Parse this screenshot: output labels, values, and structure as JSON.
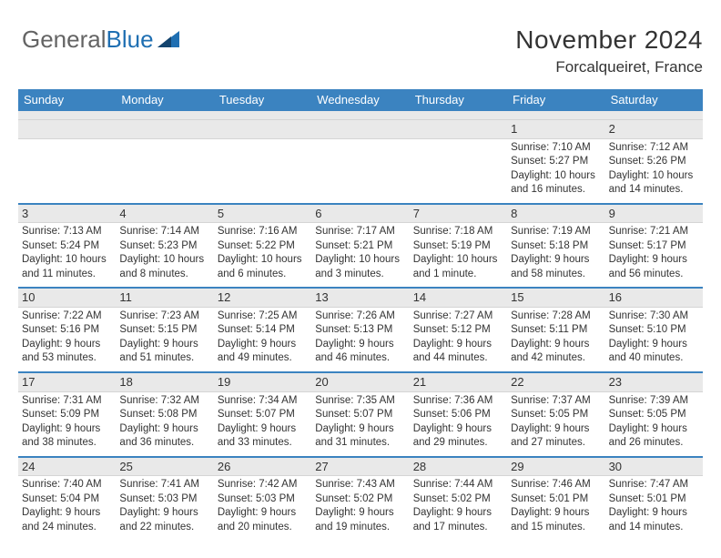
{
  "logo": {
    "word1": "General",
    "word2": "Blue"
  },
  "title": "November 2024",
  "location": "Forcalqueiret, France",
  "colors": {
    "header_bg": "#3b83c0",
    "header_text": "#ffffff",
    "band_bg": "#e9e9e9",
    "row_border": "#3b83c0",
    "logo_gray": "#646464",
    "logo_blue": "#1f6fb2"
  },
  "day_names": [
    "Sunday",
    "Monday",
    "Tuesday",
    "Wednesday",
    "Thursday",
    "Friday",
    "Saturday"
  ],
  "weeks": [
    [
      {
        "num": "",
        "lines": []
      },
      {
        "num": "",
        "lines": []
      },
      {
        "num": "",
        "lines": []
      },
      {
        "num": "",
        "lines": []
      },
      {
        "num": "",
        "lines": []
      },
      {
        "num": "1",
        "lines": [
          "Sunrise: 7:10 AM",
          "Sunset: 5:27 PM",
          "Daylight: 10 hours and 16 minutes."
        ]
      },
      {
        "num": "2",
        "lines": [
          "Sunrise: 7:12 AM",
          "Sunset: 5:26 PM",
          "Daylight: 10 hours and 14 minutes."
        ]
      }
    ],
    [
      {
        "num": "3",
        "lines": [
          "Sunrise: 7:13 AM",
          "Sunset: 5:24 PM",
          "Daylight: 10 hours and 11 minutes."
        ]
      },
      {
        "num": "4",
        "lines": [
          "Sunrise: 7:14 AM",
          "Sunset: 5:23 PM",
          "Daylight: 10 hours and 8 minutes."
        ]
      },
      {
        "num": "5",
        "lines": [
          "Sunrise: 7:16 AM",
          "Sunset: 5:22 PM",
          "Daylight: 10 hours and 6 minutes."
        ]
      },
      {
        "num": "6",
        "lines": [
          "Sunrise: 7:17 AM",
          "Sunset: 5:21 PM",
          "Daylight: 10 hours and 3 minutes."
        ]
      },
      {
        "num": "7",
        "lines": [
          "Sunrise: 7:18 AM",
          "Sunset: 5:19 PM",
          "Daylight: 10 hours and 1 minute."
        ]
      },
      {
        "num": "8",
        "lines": [
          "Sunrise: 7:19 AM",
          "Sunset: 5:18 PM",
          "Daylight: 9 hours and 58 minutes."
        ]
      },
      {
        "num": "9",
        "lines": [
          "Sunrise: 7:21 AM",
          "Sunset: 5:17 PM",
          "Daylight: 9 hours and 56 minutes."
        ]
      }
    ],
    [
      {
        "num": "10",
        "lines": [
          "Sunrise: 7:22 AM",
          "Sunset: 5:16 PM",
          "Daylight: 9 hours and 53 minutes."
        ]
      },
      {
        "num": "11",
        "lines": [
          "Sunrise: 7:23 AM",
          "Sunset: 5:15 PM",
          "Daylight: 9 hours and 51 minutes."
        ]
      },
      {
        "num": "12",
        "lines": [
          "Sunrise: 7:25 AM",
          "Sunset: 5:14 PM",
          "Daylight: 9 hours and 49 minutes."
        ]
      },
      {
        "num": "13",
        "lines": [
          "Sunrise: 7:26 AM",
          "Sunset: 5:13 PM",
          "Daylight: 9 hours and 46 minutes."
        ]
      },
      {
        "num": "14",
        "lines": [
          "Sunrise: 7:27 AM",
          "Sunset: 5:12 PM",
          "Daylight: 9 hours and 44 minutes."
        ]
      },
      {
        "num": "15",
        "lines": [
          "Sunrise: 7:28 AM",
          "Sunset: 5:11 PM",
          "Daylight: 9 hours and 42 minutes."
        ]
      },
      {
        "num": "16",
        "lines": [
          "Sunrise: 7:30 AM",
          "Sunset: 5:10 PM",
          "Daylight: 9 hours and 40 minutes."
        ]
      }
    ],
    [
      {
        "num": "17",
        "lines": [
          "Sunrise: 7:31 AM",
          "Sunset: 5:09 PM",
          "Daylight: 9 hours and 38 minutes."
        ]
      },
      {
        "num": "18",
        "lines": [
          "Sunrise: 7:32 AM",
          "Sunset: 5:08 PM",
          "Daylight: 9 hours and 36 minutes."
        ]
      },
      {
        "num": "19",
        "lines": [
          "Sunrise: 7:34 AM",
          "Sunset: 5:07 PM",
          "Daylight: 9 hours and 33 minutes."
        ]
      },
      {
        "num": "20",
        "lines": [
          "Sunrise: 7:35 AM",
          "Sunset: 5:07 PM",
          "Daylight: 9 hours and 31 minutes."
        ]
      },
      {
        "num": "21",
        "lines": [
          "Sunrise: 7:36 AM",
          "Sunset: 5:06 PM",
          "Daylight: 9 hours and 29 minutes."
        ]
      },
      {
        "num": "22",
        "lines": [
          "Sunrise: 7:37 AM",
          "Sunset: 5:05 PM",
          "Daylight: 9 hours and 27 minutes."
        ]
      },
      {
        "num": "23",
        "lines": [
          "Sunrise: 7:39 AM",
          "Sunset: 5:05 PM",
          "Daylight: 9 hours and 26 minutes."
        ]
      }
    ],
    [
      {
        "num": "24",
        "lines": [
          "Sunrise: 7:40 AM",
          "Sunset: 5:04 PM",
          "Daylight: 9 hours and 24 minutes."
        ]
      },
      {
        "num": "25",
        "lines": [
          "Sunrise: 7:41 AM",
          "Sunset: 5:03 PM",
          "Daylight: 9 hours and 22 minutes."
        ]
      },
      {
        "num": "26",
        "lines": [
          "Sunrise: 7:42 AM",
          "Sunset: 5:03 PM",
          "Daylight: 9 hours and 20 minutes."
        ]
      },
      {
        "num": "27",
        "lines": [
          "Sunrise: 7:43 AM",
          "Sunset: 5:02 PM",
          "Daylight: 9 hours and 19 minutes."
        ]
      },
      {
        "num": "28",
        "lines": [
          "Sunrise: 7:44 AM",
          "Sunset: 5:02 PM",
          "Daylight: 9 hours and 17 minutes."
        ]
      },
      {
        "num": "29",
        "lines": [
          "Sunrise: 7:46 AM",
          "Sunset: 5:01 PM",
          "Daylight: 9 hours and 15 minutes."
        ]
      },
      {
        "num": "30",
        "lines": [
          "Sunrise: 7:47 AM",
          "Sunset: 5:01 PM",
          "Daylight: 9 hours and 14 minutes."
        ]
      }
    ]
  ]
}
